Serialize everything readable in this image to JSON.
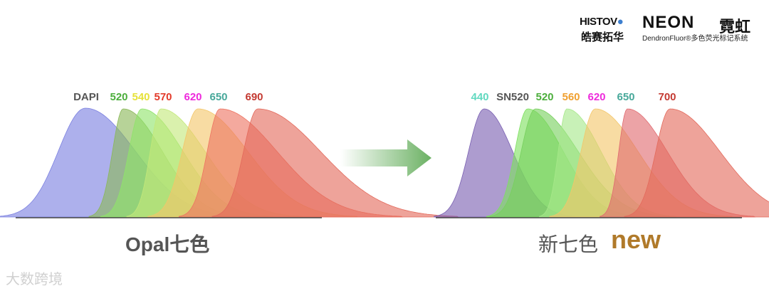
{
  "logos": {
    "histov": "HISTOV",
    "histov_cn": "皓赛拓华",
    "neon": "NEON",
    "neon_cn": "霓虹",
    "neon_sub": "DendronFluor®多色荧光标记系统"
  },
  "chart_data": [
    {
      "type": "area",
      "title": "",
      "caption": "Opal七色",
      "peaks": [
        {
          "label": "DAPI",
          "color": "#7b80e0",
          "label_color": "#555555"
        },
        {
          "label": "520",
          "color": "#8ab858",
          "label_color": "#4cae3c"
        },
        {
          "label": "540",
          "color": "#8fe36a",
          "label_color": "#e6e23a"
        },
        {
          "label": "570",
          "color": "#c3e87a",
          "label_color": "#e33a2a"
        },
        {
          "label": "620",
          "color": "#f3c66a",
          "label_color": "#ee2adc"
        },
        {
          "label": "650",
          "color": "#ee7462",
          "label_color": "#47a89a"
        },
        {
          "label": "690",
          "color": "#e36a5c",
          "label_color": "#c43a32"
        }
      ]
    },
    {
      "type": "area",
      "title": "",
      "caption": "新七色",
      "badge": "new",
      "peaks": [
        {
          "label": "440",
          "color": "#7a60b2",
          "label_color": "#62d9c0"
        },
        {
          "label": "SN520",
          "color": "#7ee060",
          "label_color": "#555555"
        },
        {
          "label": "520",
          "color": "#78d05e",
          "label_color": "#4cae3c"
        },
        {
          "label": "560",
          "color": "#a7e88a",
          "label_color": "#f0a030"
        },
        {
          "label": "620",
          "color": "#f3c66a",
          "label_color": "#ee2adc"
        },
        {
          "label": "650",
          "color": "#e06a70",
          "label_color": "#47a89a"
        },
        {
          "label": "700",
          "color": "#e36a5c",
          "label_color": "#c43a32"
        }
      ]
    }
  ],
  "watermark": "大数跨境"
}
